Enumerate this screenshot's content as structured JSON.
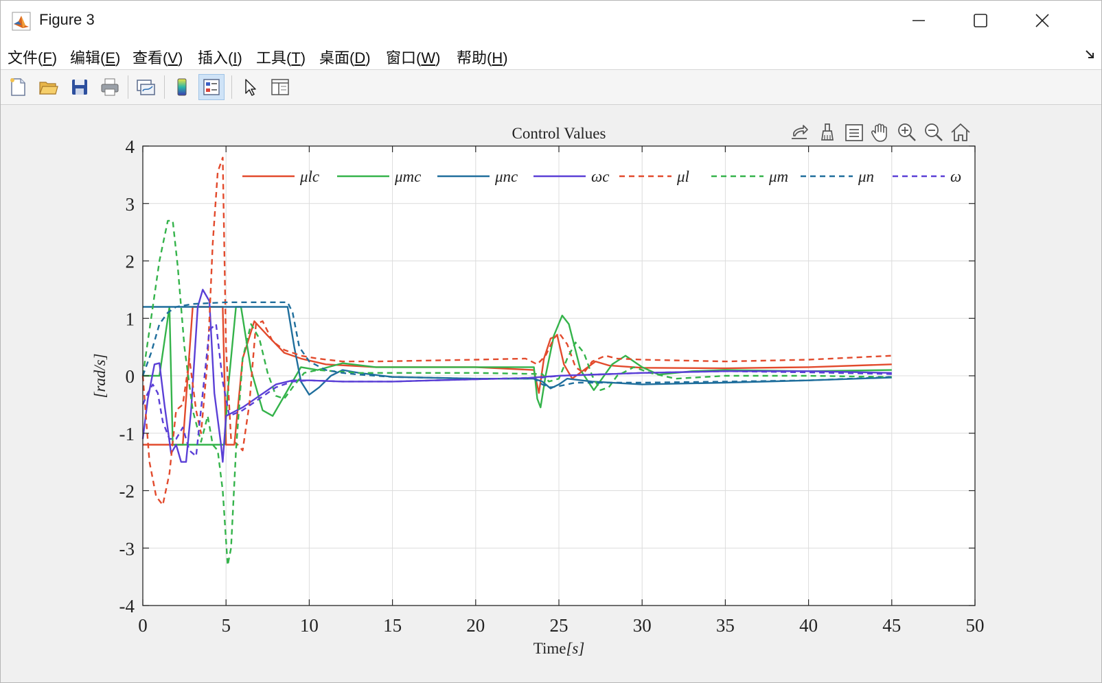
{
  "window": {
    "title": "Figure 3",
    "controls": [
      "minimize",
      "maximize",
      "close"
    ]
  },
  "menu": [
    {
      "label": "文件(",
      "key": "F",
      "tail": ")"
    },
    {
      "label": "编辑(",
      "key": "E",
      "tail": ")"
    },
    {
      "label": "查看(",
      "key": "V",
      "tail": ")"
    },
    {
      "label": "插入(",
      "key": "I",
      "tail": ")"
    },
    {
      "label": "工具(",
      "key": "T",
      "tail": ")"
    },
    {
      "label": "桌面(",
      "key": "D",
      "tail": ")"
    },
    {
      "label": "窗口(",
      "key": "W",
      "tail": ")"
    },
    {
      "label": "帮助(",
      "key": "H",
      "tail": ")"
    }
  ],
  "toolbar_icons": [
    "new-figure-icon",
    "open-file-icon",
    "save-icon",
    "print-icon",
    "link-plot-icon",
    "colorbar-icon",
    "legend-icon",
    "edit-plot-icon",
    "property-inspector-icon"
  ],
  "axes_toolbar_icons": [
    "export-icon",
    "brush-icon",
    "data-tips-icon",
    "pan-icon",
    "zoom-in-icon",
    "zoom-out-icon",
    "home-icon"
  ],
  "chart_data": {
    "type": "line",
    "title": "Control Values",
    "xlabel": "Time",
    "xlabel_unit": "[s]",
    "ylabel": "[rad/s]",
    "xlim": [
      0,
      50
    ],
    "ylim": [
      -4,
      4
    ],
    "xticks": [
      "0",
      "5",
      "10",
      "15",
      "20",
      "25",
      "30",
      "35",
      "40",
      "45",
      "50"
    ],
    "yticks": [
      "4",
      "3",
      "2",
      "1",
      "0",
      "-1",
      "-2",
      "-3",
      "-4"
    ],
    "grid": true,
    "legend_position": "top",
    "colors": {
      "red": "#e24a2c",
      "green": "#34b34a",
      "blue": "#1f6e9c",
      "purple": "#5a3fd6"
    },
    "series": [
      {
        "name": "μlc",
        "color": "#e24a2c",
        "dash": false,
        "x": [
          0,
          1.6,
          2.4,
          2.6,
          3.0,
          4.8,
          5.0,
          5.5,
          6.0,
          6.7,
          7.5,
          8.5,
          9.5,
          11,
          14,
          20,
          23.5,
          23.8,
          24.1,
          24.5,
          24.9,
          25.3,
          25.8,
          26.5,
          27.2,
          28,
          30,
          35,
          40,
          45
        ],
        "y": [
          -1.2,
          -1.2,
          -1.2,
          -0.4,
          1.2,
          1.2,
          -1.2,
          -1.2,
          0.3,
          0.95,
          0.7,
          0.4,
          0.3,
          0.2,
          0.15,
          0.15,
          0.1,
          -0.3,
          0.3,
          0.65,
          0.7,
          0.2,
          -0.05,
          0.1,
          0.25,
          0.18,
          0.14,
          0.13,
          0.15,
          0.2
        ]
      },
      {
        "name": "μmc",
        "color": "#34b34a",
        "dash": false,
        "x": [
          0,
          0.8,
          1.0,
          1.6,
          1.8,
          4.9,
          5.1,
          5.6,
          5.9,
          6.5,
          7.2,
          7.8,
          8.6,
          9.5,
          10.5,
          12,
          14,
          20,
          23.5,
          23.7,
          23.9,
          24.2,
          24.7,
          25.2,
          25.6,
          26.3,
          27.1,
          28.2,
          29,
          30,
          31,
          33,
          35,
          40,
          45
        ],
        "y": [
          0,
          0,
          0,
          1.2,
          -1.2,
          -1.2,
          -0.3,
          1.2,
          1.2,
          0.1,
          -0.6,
          -0.7,
          -0.3,
          0.15,
          0.1,
          0.22,
          0.15,
          0.15,
          0.15,
          -0.4,
          -0.55,
          0.0,
          0.7,
          1.05,
          0.9,
          0.1,
          -0.25,
          0.2,
          0.35,
          0.15,
          0.02,
          0.08,
          0.1,
          0.08,
          0.1
        ]
      },
      {
        "name": "μnc",
        "color": "#1f6e9c",
        "dash": false,
        "x": [
          0,
          8.7,
          9.1,
          9.5,
          10,
          10.6,
          11.3,
          12,
          13,
          15,
          20,
          23.5,
          24,
          24.5,
          25,
          25.5,
          27,
          30,
          35,
          40,
          45
        ],
        "y": [
          1.2,
          1.2,
          0.5,
          -0.1,
          -0.33,
          -0.2,
          0.0,
          0.1,
          0.05,
          -0.02,
          -0.05,
          -0.05,
          -0.1,
          -0.22,
          -0.15,
          -0.05,
          -0.1,
          -0.15,
          -0.12,
          -0.08,
          -0.03
        ]
      },
      {
        "name": "ωc",
        "color": "#5a3fd6",
        "dash": false,
        "x": [
          0,
          0.3,
          0.7,
          1.0,
          1.3,
          1.7,
          2.0,
          2.3,
          2.6,
          2.9,
          3.3,
          3.6,
          4.0,
          4.3,
          4.7,
          4.8,
          5.0,
          6,
          7,
          8,
          9,
          10,
          12,
          15,
          20,
          23,
          24,
          25,
          30,
          35,
          40,
          45
        ],
        "y": [
          -1.1,
          -0.4,
          0.2,
          0.22,
          -0.5,
          -1.35,
          -1.2,
          -1.5,
          -1.5,
          -0.6,
          1.2,
          1.5,
          1.3,
          -0.3,
          -1.2,
          -1.5,
          -0.7,
          -0.55,
          -0.35,
          -0.15,
          -0.08,
          -0.08,
          -0.1,
          -0.1,
          -0.06,
          -0.04,
          -0.02,
          0.0,
          0.05,
          0.08,
          0.08,
          0.05
        ]
      },
      {
        "name": "μl",
        "color": "#e24a2c",
        "dash": true,
        "x": [
          0,
          0.4,
          0.8,
          1.2,
          1.6,
          2.0,
          2.4,
          2.8,
          3.2,
          3.5,
          3.9,
          4.2,
          4.5,
          4.8,
          5.0,
          5.3,
          5.7,
          6.0,
          6.4,
          6.8,
          7.2,
          7.8,
          8.5,
          9.5,
          10.5,
          12,
          14,
          20,
          23,
          23.7,
          24.2,
          24.7,
          25.0,
          25.5,
          26,
          26.5,
          27,
          27.8,
          28.5,
          30,
          35,
          40,
          45
        ],
        "y": [
          0,
          -1.5,
          -2.1,
          -2.25,
          -1.7,
          -0.6,
          -0.5,
          0.3,
          -0.6,
          -1.0,
          0.3,
          2.3,
          3.55,
          3.8,
          0.5,
          -1.1,
          -1.2,
          -1.3,
          -0.5,
          0.9,
          0.95,
          0.6,
          0.45,
          0.35,
          0.3,
          0.25,
          0.25,
          0.28,
          0.3,
          0.2,
          0.35,
          0.65,
          0.75,
          0.55,
          0.15,
          0.05,
          0.25,
          0.35,
          0.3,
          0.28,
          0.25,
          0.28,
          0.35
        ]
      },
      {
        "name": "μm",
        "color": "#34b34a",
        "dash": true,
        "x": [
          0,
          0.5,
          1.0,
          1.5,
          1.8,
          2.1,
          2.5,
          3.0,
          3.5,
          3.9,
          4.2,
          4.5,
          4.8,
          5.1,
          5.3,
          5.6,
          6.0,
          6.5,
          7.0,
          7.5,
          8.0,
          8.5,
          9.0,
          9.7,
          10.5,
          11.5,
          13,
          20,
          24,
          24.4,
          25,
          25.5,
          26,
          26.5,
          27,
          27.5,
          28,
          28.5,
          29.5,
          30.5,
          32,
          35,
          40,
          45
        ],
        "y": [
          0,
          1.0,
          2.0,
          2.7,
          2.7,
          1.9,
          0.5,
          -0.6,
          -1.15,
          -0.7,
          -1.2,
          -1.3,
          -2.0,
          -3.3,
          -3.0,
          -1.3,
          0.3,
          0.9,
          0.65,
          0.05,
          -0.35,
          -0.4,
          -0.2,
          0.05,
          0.1,
          0.08,
          0.05,
          0.05,
          0.03,
          -0.1,
          -0.05,
          0.3,
          0.58,
          0.4,
          0.0,
          -0.25,
          -0.2,
          0.0,
          0.15,
          0.05,
          -0.05,
          0.0,
          0.0,
          -0.02
        ]
      },
      {
        "name": "μn",
        "color": "#1f6e9c",
        "dash": true,
        "x": [
          0,
          0.5,
          1.0,
          1.5,
          2.0,
          3.0,
          5.0,
          8.7,
          9.0,
          9.4,
          10.0,
          11,
          12,
          13,
          15,
          20,
          23.5,
          24,
          24.5,
          25,
          26,
          28,
          30,
          35,
          40,
          45
        ],
        "y": [
          0,
          0.4,
          0.9,
          1.1,
          1.2,
          1.25,
          1.28,
          1.28,
          1.1,
          0.5,
          0.25,
          0.1,
          0.05,
          0.02,
          -0.02,
          -0.05,
          -0.05,
          -0.15,
          -0.2,
          -0.18,
          -0.12,
          -0.12,
          -0.12,
          -0.1,
          -0.08,
          -0.02
        ]
      },
      {
        "name": "ω",
        "color": "#5a3fd6",
        "dash": true,
        "x": [
          0,
          0.3,
          0.6,
          0.9,
          1.2,
          1.6,
          2.0,
          2.4,
          2.8,
          3.2,
          3.6,
          4.0,
          4.4,
          4.8,
          5.2,
          6,
          7,
          8,
          9,
          10,
          12,
          15,
          20,
          24,
          25,
          30,
          35,
          40,
          45
        ],
        "y": [
          -0.5,
          -0.3,
          -0.15,
          -0.3,
          -0.8,
          -1.1,
          -1.1,
          -0.9,
          -1.3,
          -1.4,
          -0.3,
          0.8,
          0.9,
          -0.1,
          -0.7,
          -0.6,
          -0.4,
          -0.2,
          -0.1,
          -0.08,
          -0.1,
          -0.1,
          -0.06,
          -0.03,
          0.0,
          0.05,
          0.08,
          0.06,
          0.03
        ]
      }
    ]
  }
}
